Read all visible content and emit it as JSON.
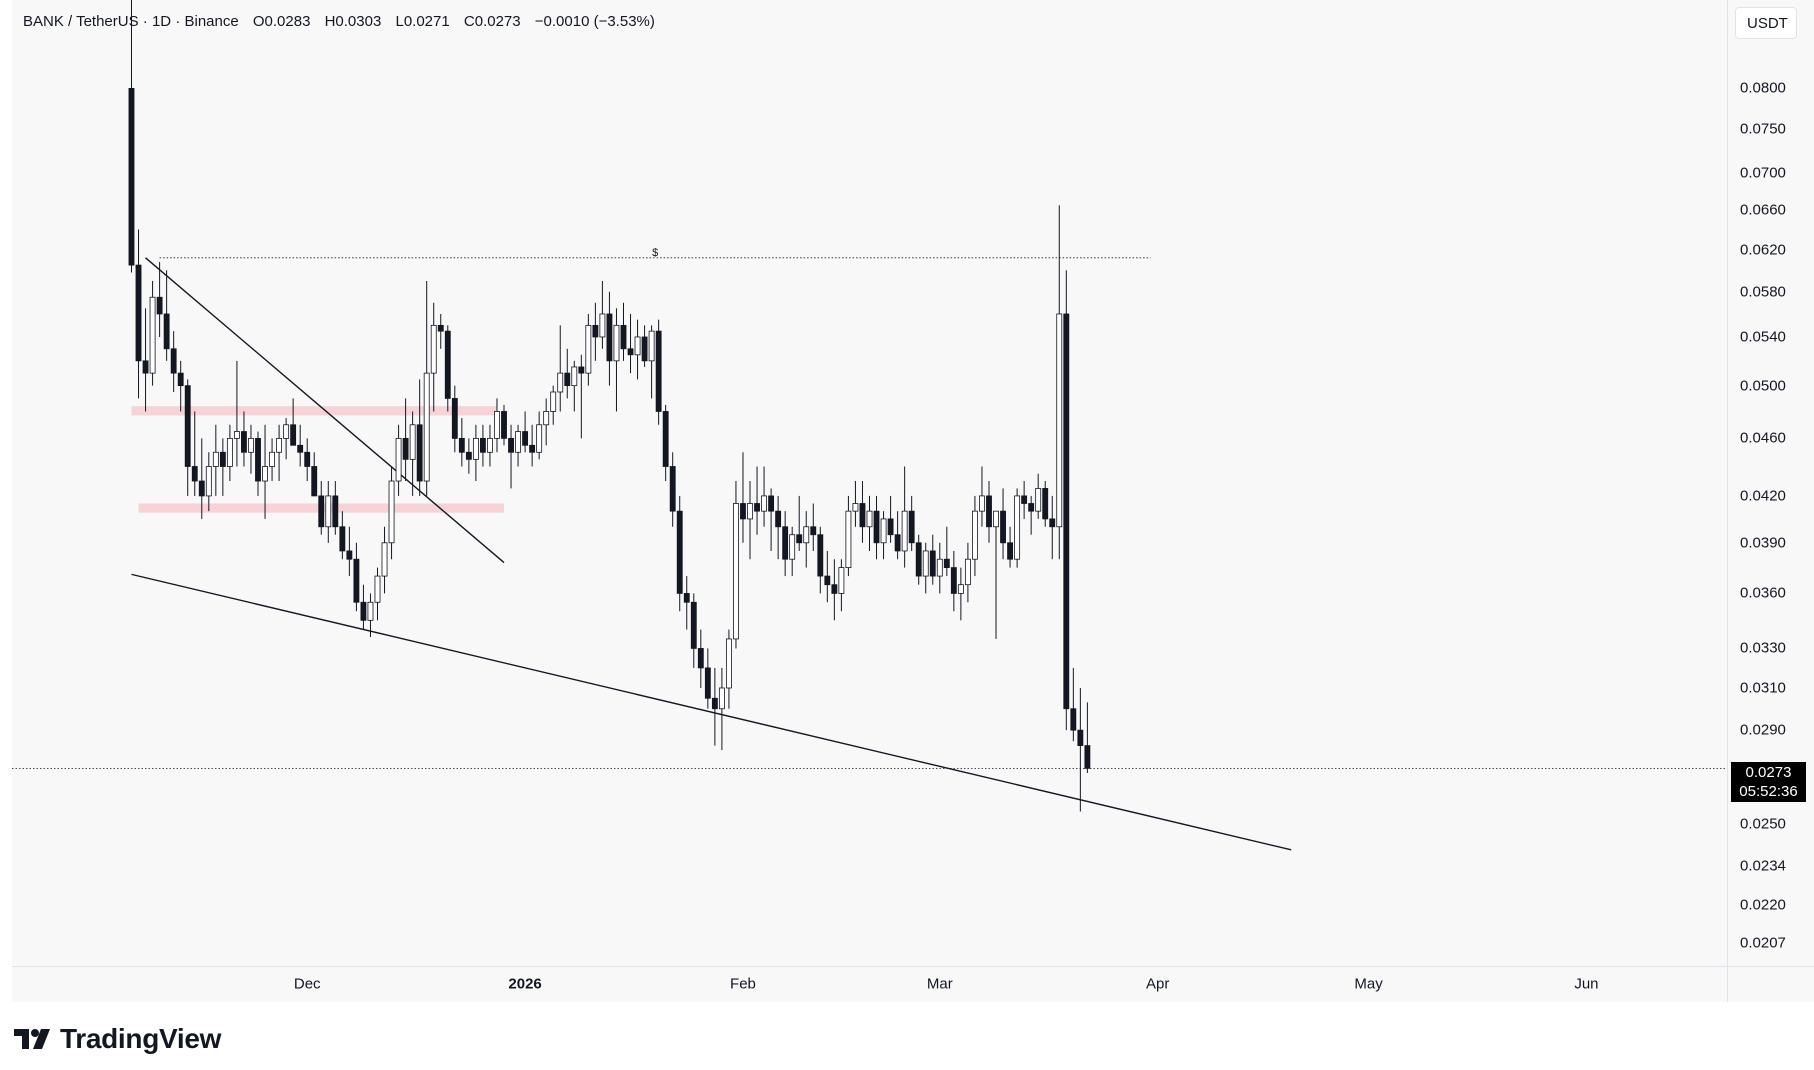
{
  "legend": {
    "symbol": "BANK / TetherUS",
    "interval": "1D",
    "exchange": "Binance",
    "open": "O0.0283",
    "high": "H0.0303",
    "low": "L0.0271",
    "close": "C0.0273",
    "change": "−0.0010 (−3.53%)",
    "separator": "·"
  },
  "currency": "USDT",
  "last_price": {
    "price": "0.0273",
    "countdown": "05:52:36"
  },
  "brand": {
    "name": "TradingView"
  },
  "colors": {
    "candle": "#131722",
    "up_fill": "#ffffff",
    "down_fill": "#131722",
    "zone": "#f7c6cc",
    "trendline": "#131722",
    "background": "#f8f8f8"
  },
  "chart_data": {
    "type": "candlestick",
    "title": "",
    "y_scale": "log",
    "ylim": [
      0.0201,
      0.092
    ],
    "y_ticks": [
      "0.0800",
      "0.0750",
      "0.0700",
      "0.0660",
      "0.0620",
      "0.0580",
      "0.0540",
      "0.0500",
      "0.0460",
      "0.0420",
      "0.0390",
      "0.0360",
      "0.0330",
      "0.0310",
      "0.0290",
      "0.0250",
      "0.0234",
      "0.0220",
      "0.0207"
    ],
    "x_ticks": [
      {
        "label": "Dec",
        "date": "2025-12-01",
        "bold": false
      },
      {
        "label": "2026",
        "date": "2026-01-01",
        "bold": true
      },
      {
        "label": "Feb",
        "date": "2026-02-01",
        "bold": false
      },
      {
        "label": "Mar",
        "date": "2026-03-01",
        "bold": false
      },
      {
        "label": "Apr",
        "date": "2026-04-01",
        "bold": false
      },
      {
        "label": "May",
        "date": "2026-05-01",
        "bold": false
      },
      {
        "label": "Jun",
        "date": "2026-06-01",
        "bold": false
      }
    ],
    "xlim": [
      "2025-10-20",
      "2026-06-21"
    ],
    "candles_start_date": "2025-11-06",
    "candles": [
      [
        0.08,
        0.092,
        0.0598,
        0.0605
      ],
      [
        0.0605,
        0.064,
        0.049,
        0.052
      ],
      [
        0.052,
        0.0565,
        0.048,
        0.051
      ],
      [
        0.051,
        0.059,
        0.05,
        0.0575
      ],
      [
        0.0575,
        0.0608,
        0.054,
        0.056
      ],
      [
        0.056,
        0.06,
        0.052,
        0.053
      ],
      [
        0.053,
        0.0545,
        0.0495,
        0.051
      ],
      [
        0.051,
        0.052,
        0.048,
        0.05
      ],
      [
        0.05,
        0.0505,
        0.042,
        0.044
      ],
      [
        0.044,
        0.048,
        0.042,
        0.043
      ],
      [
        0.043,
        0.046,
        0.0405,
        0.042
      ],
      [
        0.042,
        0.045,
        0.041,
        0.044
      ],
      [
        0.044,
        0.047,
        0.042,
        0.045
      ],
      [
        0.045,
        0.046,
        0.042,
        0.044
      ],
      [
        0.044,
        0.047,
        0.043,
        0.046
      ],
      [
        0.046,
        0.052,
        0.044,
        0.0465
      ],
      [
        0.0465,
        0.048,
        0.044,
        0.045
      ],
      [
        0.045,
        0.047,
        0.0435,
        0.046
      ],
      [
        0.046,
        0.0465,
        0.042,
        0.043
      ],
      [
        0.043,
        0.047,
        0.0405,
        0.044
      ],
      [
        0.044,
        0.046,
        0.043,
        0.045
      ],
      [
        0.045,
        0.047,
        0.043,
        0.046
      ],
      [
        0.046,
        0.0475,
        0.0445,
        0.047
      ],
      [
        0.047,
        0.049,
        0.0455,
        0.0455
      ],
      [
        0.0455,
        0.047,
        0.044,
        0.045
      ],
      [
        0.045,
        0.046,
        0.043,
        0.044
      ],
      [
        0.044,
        0.045,
        0.042,
        0.042
      ],
      [
        0.042,
        0.043,
        0.0395,
        0.04
      ],
      [
        0.04,
        0.043,
        0.039,
        0.042
      ],
      [
        0.042,
        0.043,
        0.0395,
        0.04
      ],
      [
        0.04,
        0.041,
        0.038,
        0.0385
      ],
      [
        0.0385,
        0.04,
        0.037,
        0.038
      ],
      [
        0.038,
        0.039,
        0.035,
        0.0355
      ],
      [
        0.0355,
        0.0365,
        0.034,
        0.0345
      ],
      [
        0.0345,
        0.036,
        0.0336,
        0.0355
      ],
      [
        0.0355,
        0.0375,
        0.0345,
        0.037
      ],
      [
        0.037,
        0.04,
        0.036,
        0.039
      ],
      [
        0.039,
        0.044,
        0.038,
        0.043
      ],
      [
        0.043,
        0.047,
        0.042,
        0.046
      ],
      [
        0.046,
        0.049,
        0.043,
        0.0445
      ],
      [
        0.0445,
        0.048,
        0.042,
        0.047
      ],
      [
        0.047,
        0.0505,
        0.042,
        0.043
      ],
      [
        0.043,
        0.059,
        0.042,
        0.051
      ],
      [
        0.051,
        0.057,
        0.048,
        0.055
      ],
      [
        0.055,
        0.056,
        0.053,
        0.0545
      ],
      [
        0.0545,
        0.055,
        0.048,
        0.049
      ],
      [
        0.049,
        0.05,
        0.045,
        0.046
      ],
      [
        0.046,
        0.0475,
        0.044,
        0.045
      ],
      [
        0.045,
        0.046,
        0.0435,
        0.0445
      ],
      [
        0.0445,
        0.047,
        0.043,
        0.046
      ],
      [
        0.046,
        0.047,
        0.044,
        0.045
      ],
      [
        0.045,
        0.047,
        0.044,
        0.046
      ],
      [
        0.046,
        0.049,
        0.045,
        0.048
      ],
      [
        0.048,
        0.0485,
        0.0455,
        0.046
      ],
      [
        0.046,
        0.047,
        0.0425,
        0.045
      ],
      [
        0.045,
        0.047,
        0.044,
        0.0465
      ],
      [
        0.0465,
        0.048,
        0.045,
        0.0455
      ],
      [
        0.0455,
        0.047,
        0.044,
        0.045
      ],
      [
        0.045,
        0.048,
        0.0445,
        0.047
      ],
      [
        0.047,
        0.049,
        0.0455,
        0.048
      ],
      [
        0.048,
        0.05,
        0.047,
        0.0495
      ],
      [
        0.0495,
        0.055,
        0.048,
        0.051
      ],
      [
        0.051,
        0.053,
        0.049,
        0.05
      ],
      [
        0.05,
        0.052,
        0.048,
        0.0515
      ],
      [
        0.0515,
        0.0525,
        0.046,
        0.051
      ],
      [
        0.051,
        0.056,
        0.05,
        0.055
      ],
      [
        0.055,
        0.057,
        0.052,
        0.054
      ],
      [
        0.054,
        0.059,
        0.053,
        0.056
      ],
      [
        0.056,
        0.058,
        0.05,
        0.052
      ],
      [
        0.052,
        0.0565,
        0.048,
        0.055
      ],
      [
        0.055,
        0.057,
        0.052,
        0.053
      ],
      [
        0.053,
        0.056,
        0.051,
        0.0525
      ],
      [
        0.0525,
        0.0555,
        0.0505,
        0.054
      ],
      [
        0.054,
        0.055,
        0.0515,
        0.052
      ],
      [
        0.052,
        0.055,
        0.049,
        0.0545
      ],
      [
        0.0545,
        0.0555,
        0.047,
        0.048
      ],
      [
        0.048,
        0.0485,
        0.043,
        0.044
      ],
      [
        0.044,
        0.045,
        0.04,
        0.041
      ],
      [
        0.041,
        0.042,
        0.035,
        0.036
      ],
      [
        0.036,
        0.037,
        0.034,
        0.0355
      ],
      [
        0.0355,
        0.036,
        0.032,
        0.033
      ],
      [
        0.033,
        0.034,
        0.031,
        0.032
      ],
      [
        0.032,
        0.033,
        0.03,
        0.0305
      ],
      [
        0.0305,
        0.032,
        0.0283,
        0.03
      ],
      [
        0.03,
        0.032,
        0.0281,
        0.031
      ],
      [
        0.031,
        0.034,
        0.03,
        0.0335
      ],
      [
        0.0335,
        0.043,
        0.033,
        0.0415
      ],
      [
        0.0415,
        0.045,
        0.039,
        0.0405
      ],
      [
        0.0405,
        0.043,
        0.038,
        0.0415
      ],
      [
        0.0415,
        0.044,
        0.0395,
        0.041
      ],
      [
        0.041,
        0.044,
        0.04,
        0.042
      ],
      [
        0.042,
        0.0425,
        0.0385,
        0.041
      ],
      [
        0.041,
        0.042,
        0.038,
        0.04
      ],
      [
        0.04,
        0.041,
        0.037,
        0.038
      ],
      [
        0.038,
        0.04,
        0.037,
        0.0395
      ],
      [
        0.0395,
        0.042,
        0.0385,
        0.039
      ],
      [
        0.039,
        0.041,
        0.0375,
        0.04
      ],
      [
        0.04,
        0.0415,
        0.0385,
        0.0395
      ],
      [
        0.0395,
        0.04,
        0.036,
        0.037
      ],
      [
        0.037,
        0.0385,
        0.0355,
        0.0365
      ],
      [
        0.0365,
        0.038,
        0.0345,
        0.036
      ],
      [
        0.036,
        0.038,
        0.035,
        0.0375
      ],
      [
        0.0375,
        0.042,
        0.037,
        0.041
      ],
      [
        0.041,
        0.043,
        0.04,
        0.0415
      ],
      [
        0.0415,
        0.043,
        0.039,
        0.04
      ],
      [
        0.04,
        0.042,
        0.0385,
        0.041
      ],
      [
        0.041,
        0.042,
        0.038,
        0.039
      ],
      [
        0.039,
        0.041,
        0.038,
        0.0405
      ],
      [
        0.0405,
        0.042,
        0.039,
        0.0395
      ],
      [
        0.0395,
        0.041,
        0.038,
        0.0385
      ],
      [
        0.0385,
        0.044,
        0.0375,
        0.041
      ],
      [
        0.041,
        0.042,
        0.0385,
        0.039
      ],
      [
        0.039,
        0.0395,
        0.0365,
        0.037
      ],
      [
        0.037,
        0.039,
        0.036,
        0.0385
      ],
      [
        0.0385,
        0.0395,
        0.0365,
        0.037
      ],
      [
        0.037,
        0.039,
        0.036,
        0.038
      ],
      [
        0.038,
        0.04,
        0.037,
        0.0375
      ],
      [
        0.0375,
        0.0385,
        0.035,
        0.036
      ],
      [
        0.036,
        0.0375,
        0.0345,
        0.0365
      ],
      [
        0.0365,
        0.039,
        0.0355,
        0.038
      ],
      [
        0.038,
        0.042,
        0.037,
        0.041
      ],
      [
        0.041,
        0.044,
        0.04,
        0.042
      ],
      [
        0.042,
        0.043,
        0.039,
        0.04
      ],
      [
        0.04,
        0.041,
        0.0335,
        0.041
      ],
      [
        0.041,
        0.0425,
        0.038,
        0.039
      ],
      [
        0.039,
        0.04,
        0.0375,
        0.038
      ],
      [
        0.038,
        0.0425,
        0.0375,
        0.042
      ],
      [
        0.042,
        0.043,
        0.0405,
        0.0415
      ],
      [
        0.0415,
        0.042,
        0.0395,
        0.041
      ],
      [
        0.041,
        0.0435,
        0.0405,
        0.0425
      ],
      [
        0.0425,
        0.043,
        0.04,
        0.0405
      ],
      [
        0.0405,
        0.042,
        0.038,
        0.04
      ],
      [
        0.04,
        0.0665,
        0.038,
        0.056
      ],
      [
        0.056,
        0.06,
        0.029,
        0.03
      ],
      [
        0.03,
        0.032,
        0.0285,
        0.029
      ],
      [
        0.029,
        0.031,
        0.0255,
        0.0283
      ],
      [
        0.0283,
        0.0303,
        0.0271,
        0.0273
      ]
    ],
    "annotations": {
      "resistance_level": {
        "price": 0.0612,
        "label": "$",
        "from": "2025-11-10",
        "to": "2026-03-31"
      },
      "last_price_line": 0.0273,
      "zones": [
        {
          "top": 0.0484,
          "bottom": 0.0477,
          "from": "2025-11-06",
          "to": "2025-12-28"
        },
        {
          "top": 0.0415,
          "bottom": 0.0409,
          "from": "2025-11-07",
          "to": "2025-12-29"
        }
      ],
      "trendlines": [
        {
          "from": [
            "2025-11-08",
            0.0612
          ],
          "to": [
            "2025-12-29",
            0.0378
          ]
        },
        {
          "from": [
            "2025-11-06",
            0.0371
          ],
          "to": [
            "2026-04-20",
            0.024
          ]
        }
      ]
    }
  }
}
